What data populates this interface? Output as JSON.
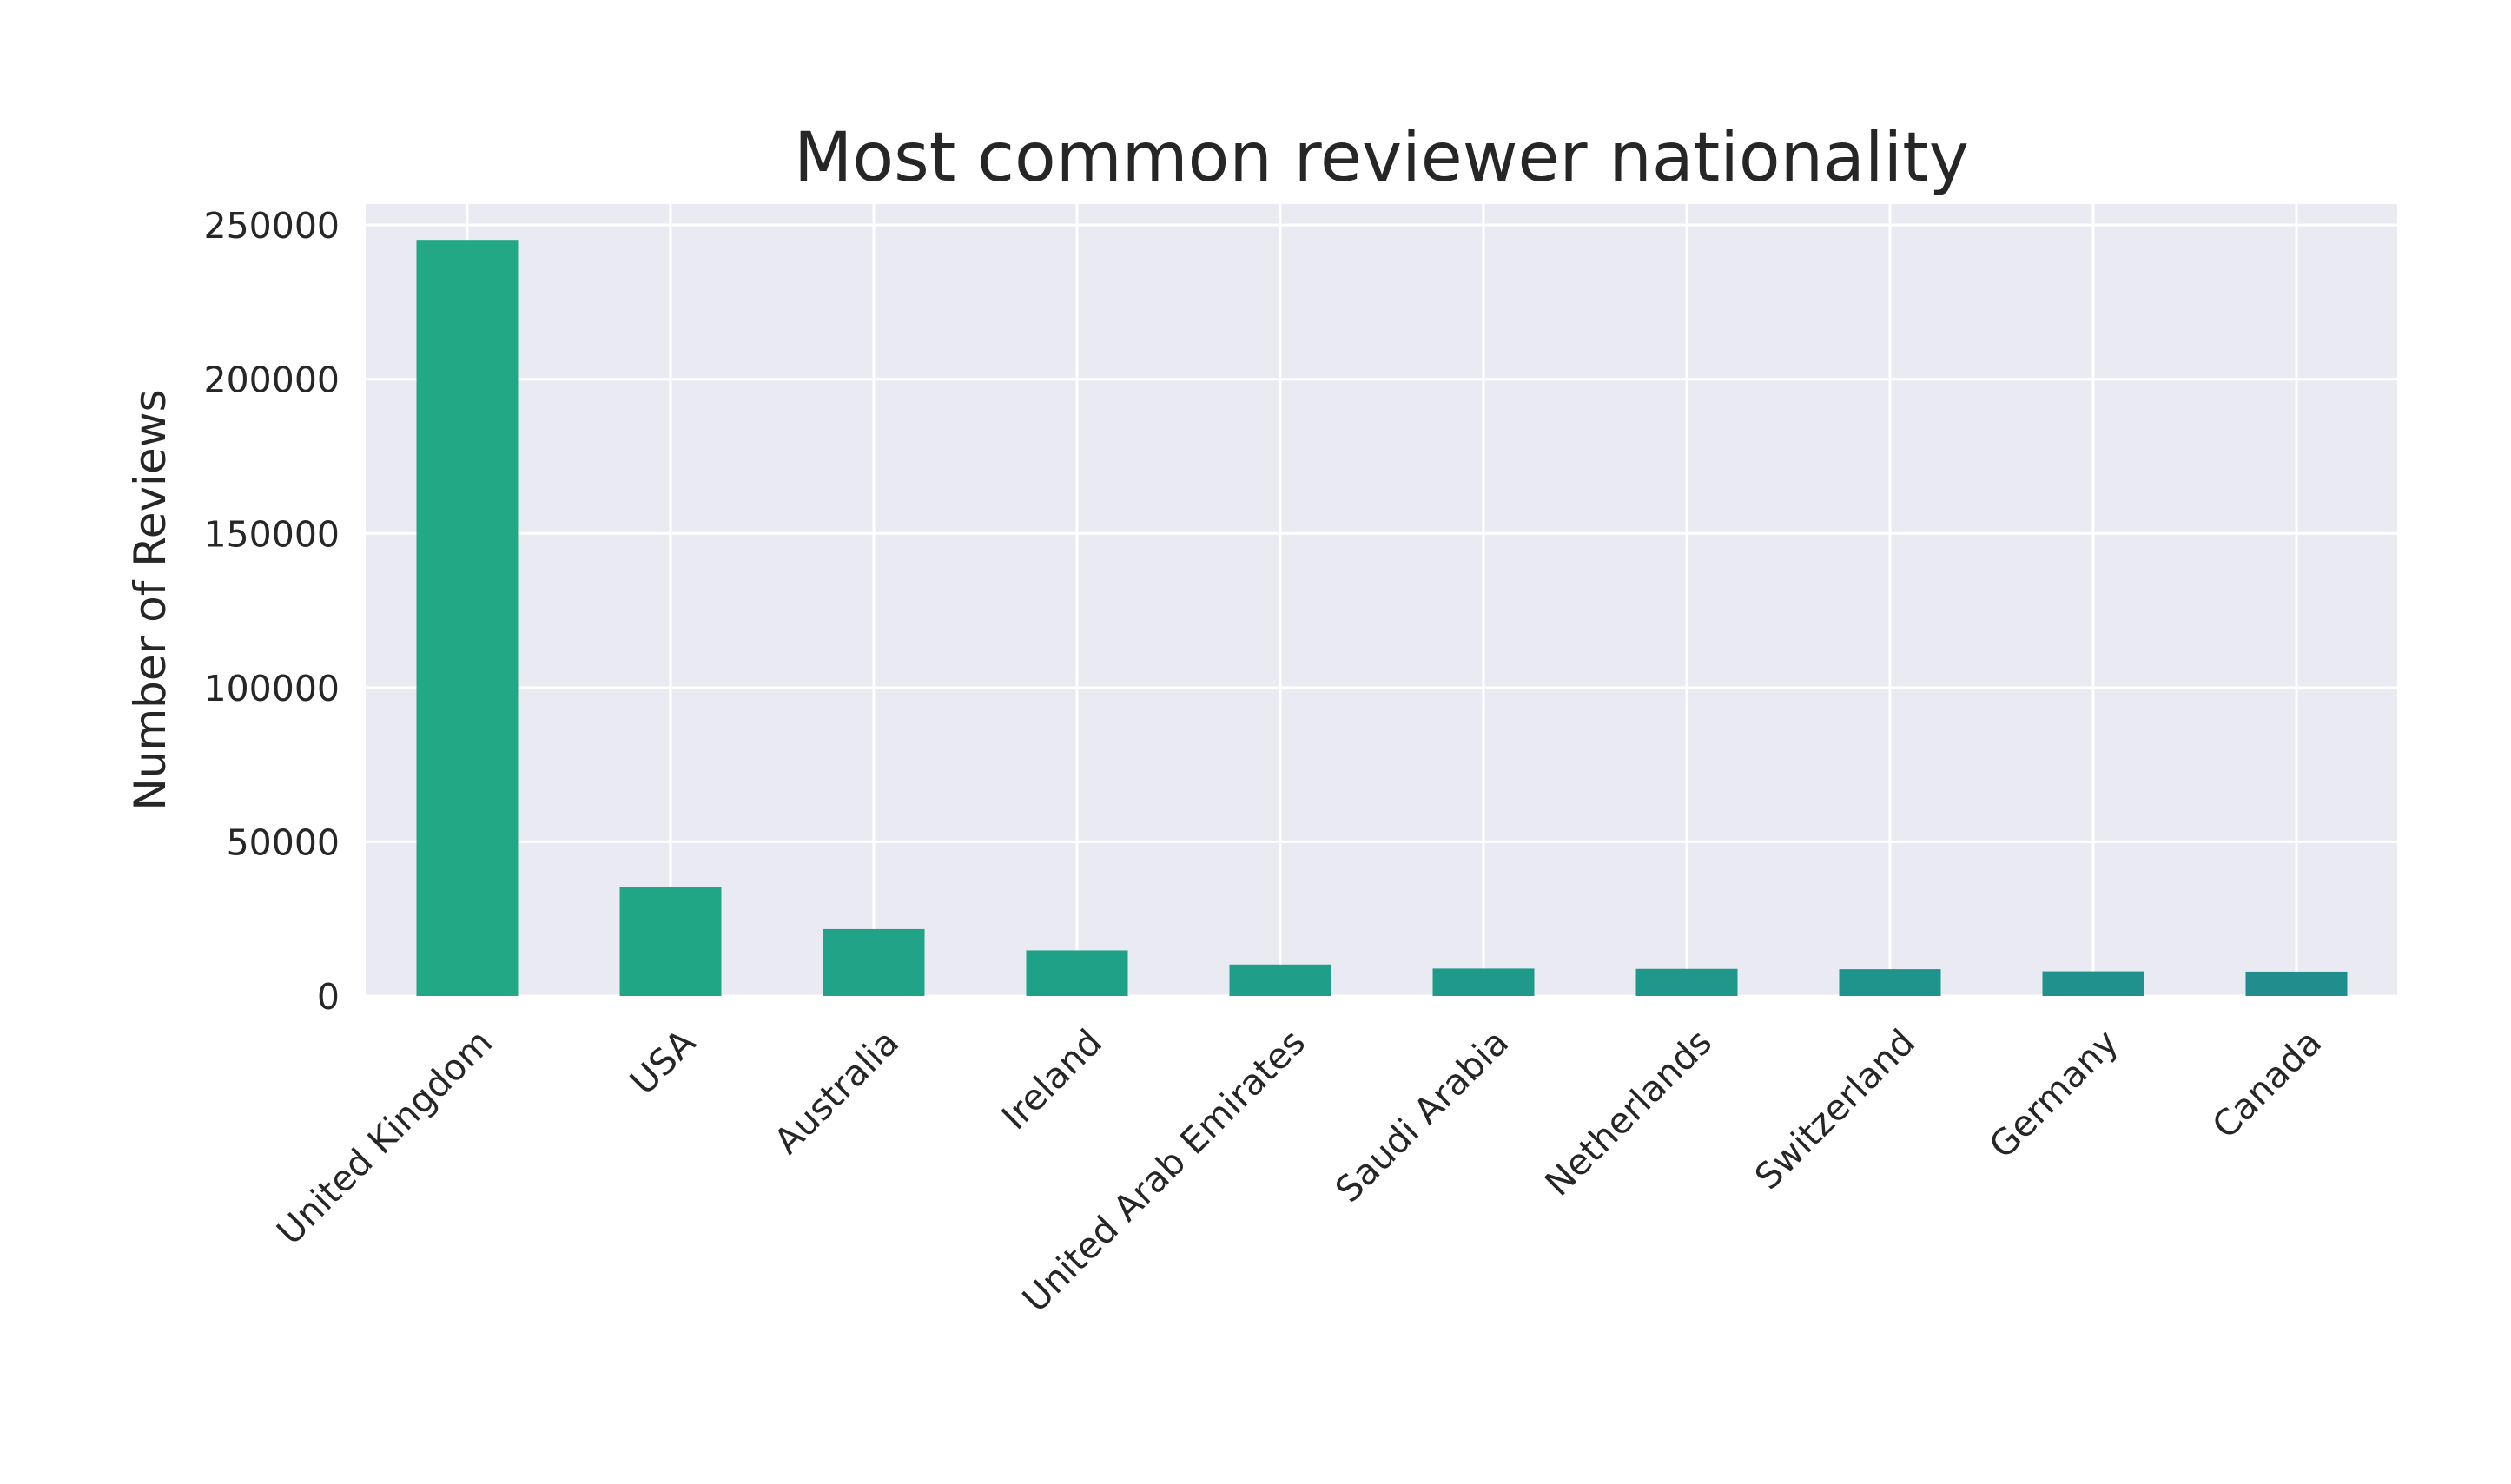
{
  "chart_data": {
    "type": "bar",
    "title": "Most common reviewer nationality",
    "xlabel": "",
    "ylabel": "Number of Reviews",
    "categories": [
      "United Kingdom",
      "USA",
      "Australia",
      "Ireland",
      "United Arab Emirates",
      "Saudi Arabia",
      "Netherlands",
      "Switzerland",
      "Germany",
      "Canada"
    ],
    "values": [
      245200,
      35400,
      21700,
      14800,
      10200,
      8900,
      8800,
      8700,
      8000,
      7900
    ],
    "ylim": [
      0,
      256800
    ],
    "yticks": [
      0,
      50000,
      100000,
      150000,
      200000,
      250000
    ],
    "ytick_labels": [
      "0",
      "50000",
      "100000",
      "150000",
      "200000",
      "250000"
    ],
    "grid": true,
    "plot_background": "#eaeaf2",
    "grid_color": "#ffffff",
    "bar_colors": [
      "#22a884",
      "#21a685",
      "#20a386",
      "#1fa188",
      "#1f9e89",
      "#1f9a8a",
      "#1f978b",
      "#1f948c",
      "#20918c",
      "#218e8d"
    ]
  }
}
